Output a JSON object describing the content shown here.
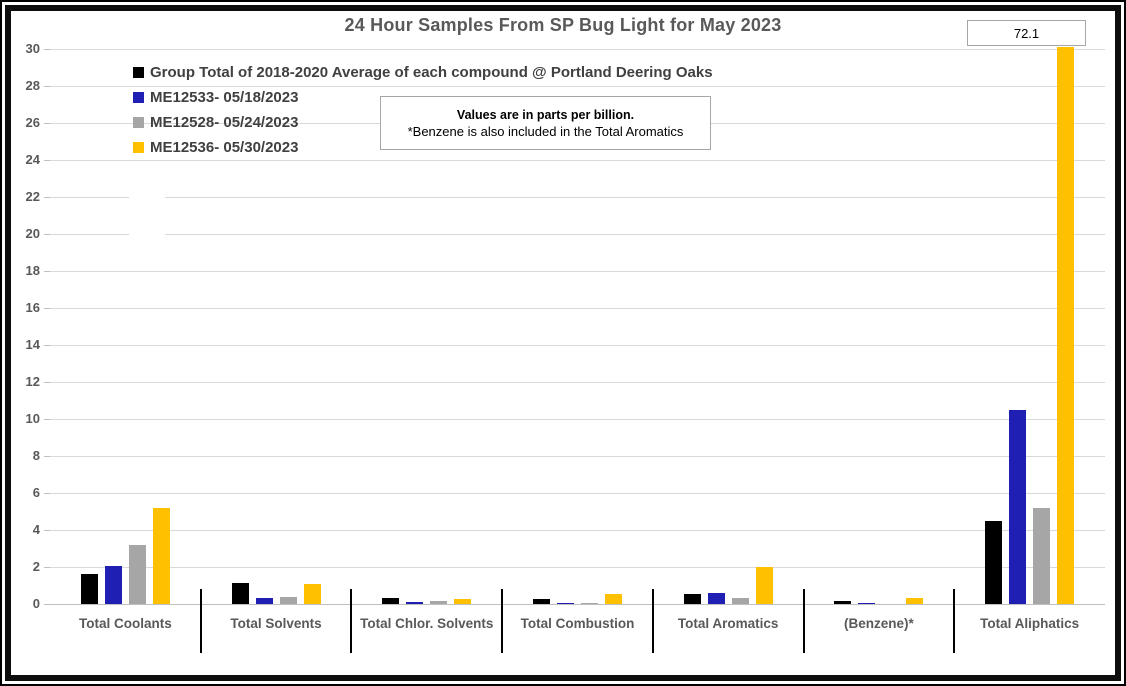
{
  "title": "24 Hour Samples From SP Bug Light for May 2023",
  "callout": {
    "value": "72.1"
  },
  "note": {
    "line1": "Values are in parts per billion.",
    "line2": "*Benzene is also included in the Total Aromatics"
  },
  "legend": [
    {
      "label": "Group Total of 2018-2020 Average of each compound @ Portland Deering Oaks",
      "color": "#000000"
    },
    {
      "label": "ME12533- 05/18/2023",
      "color": "#1f1fb4"
    },
    {
      "label": "ME12528- 05/24/2023",
      "color": "#a6a6a6"
    },
    {
      "label": "ME12536- 05/30/2023",
      "color": "#ffc000"
    }
  ],
  "chart_data": {
    "type": "bar",
    "title": "24 Hour Samples From SP Bug Light for May 2023",
    "categories": [
      "Total Coolants",
      "Total Solvents",
      "Total Chlor. Solvents",
      "Total Combustion",
      "Total Aromatics",
      "(Benzene)*",
      "Total Aliphatics"
    ],
    "series": [
      {
        "name": "Group Total of 2018-2020 Average of each compound @ Portland Deering Oaks",
        "color": "#000000",
        "values": [
          1.6,
          1.15,
          0.35,
          0.25,
          0.55,
          0.15,
          4.5
        ]
      },
      {
        "name": "ME12533- 05/18/2023",
        "color": "#1f1fb4",
        "values": [
          2.05,
          0.3,
          0.1,
          0.05,
          0.6,
          0.05,
          10.5
        ]
      },
      {
        "name": "ME12528- 05/24/2023",
        "color": "#a6a6a6",
        "values": [
          3.2,
          0.4,
          0.15,
          0.05,
          0.35,
          0,
          5.2
        ]
      },
      {
        "name": "ME12536- 05/30/2023",
        "color": "#ffc000",
        "values": [
          5.2,
          1.1,
          0.25,
          0.55,
          2.0,
          0.3,
          72.1
        ]
      }
    ],
    "xlabel": "",
    "ylabel": "",
    "ylim": [
      0,
      30
    ],
    "yticks": [
      0,
      2,
      4,
      6,
      8,
      10,
      12,
      14,
      16,
      18,
      20,
      22,
      24,
      26,
      28,
      30
    ],
    "grid": true,
    "legend_position": "top-left",
    "units": "parts per billion",
    "clipped_bar_note": "ME12536- 05/30/2023 value of 72.1 for Total Aliphatics exceeds the axis maximum of 30 and is clipped; its value is shown in the callout box above the bar"
  }
}
